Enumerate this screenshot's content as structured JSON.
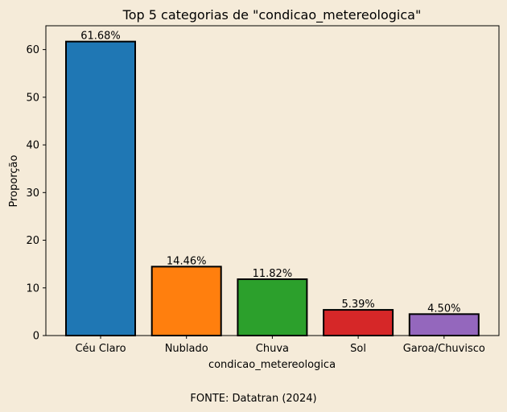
{
  "chart_data": {
    "type": "bar",
    "title": "Top 5 categorias de \"condicao_metereologica\"",
    "xlabel": "condicao_metereologica",
    "ylabel": "Proporção",
    "categories": [
      "Céu Claro",
      "Nublado",
      "Chuva",
      "Sol",
      "Garoa/Chuvisco"
    ],
    "values": [
      61.68,
      14.46,
      11.82,
      5.39,
      4.5
    ],
    "value_labels": [
      "61.68%",
      "14.46%",
      "11.82%",
      "5.39%",
      "4.50%"
    ],
    "colors": [
      "#1f77b4",
      "#ff7f0e",
      "#2ca02c",
      "#d62728",
      "#9467bd"
    ],
    "ylim": [
      0,
      65
    ],
    "yticks": [
      0,
      10,
      20,
      30,
      40,
      50,
      60
    ],
    "grid": false,
    "background": "#f5ebd9"
  },
  "source_note": "FONTE: Datatran (2024)"
}
